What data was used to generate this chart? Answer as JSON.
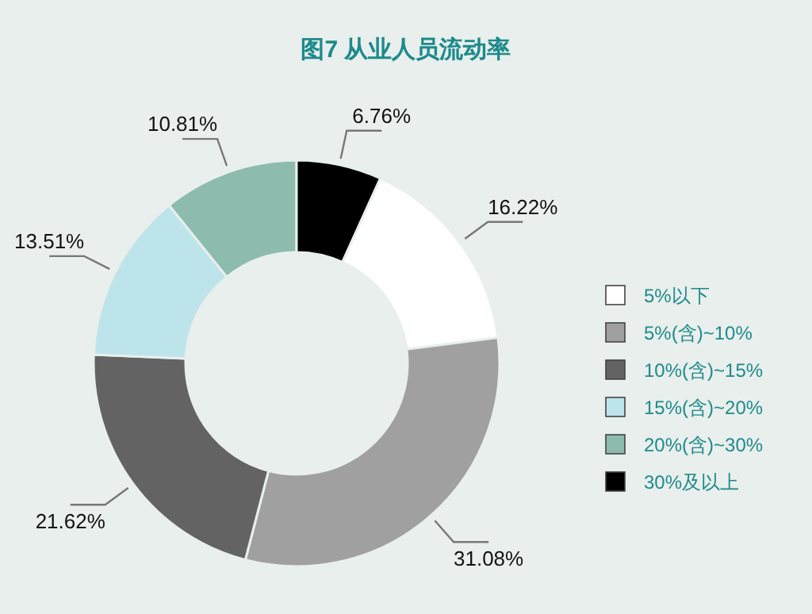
{
  "chart_data": {
    "type": "donut",
    "title": "图7  从业人员流动率",
    "categories": [
      "5%以下",
      "5%(含)~10%",
      "10%(含)~15%",
      "15%(含)~20%",
      "20%(含)~30%",
      "30%及以上"
    ],
    "values": [
      16.22,
      31.08,
      21.62,
      13.51,
      10.81,
      6.76
    ],
    "colors": [
      "#ffffff",
      "#a0a0a0",
      "#636363",
      "#bde4ea",
      "#8dbcaf",
      "#000000"
    ],
    "data_labels": true,
    "value_labels": [
      "16.22%",
      "31.08%",
      "21.62%",
      "13.51%",
      "10.81%",
      "6.76%"
    ],
    "legend": "right"
  }
}
